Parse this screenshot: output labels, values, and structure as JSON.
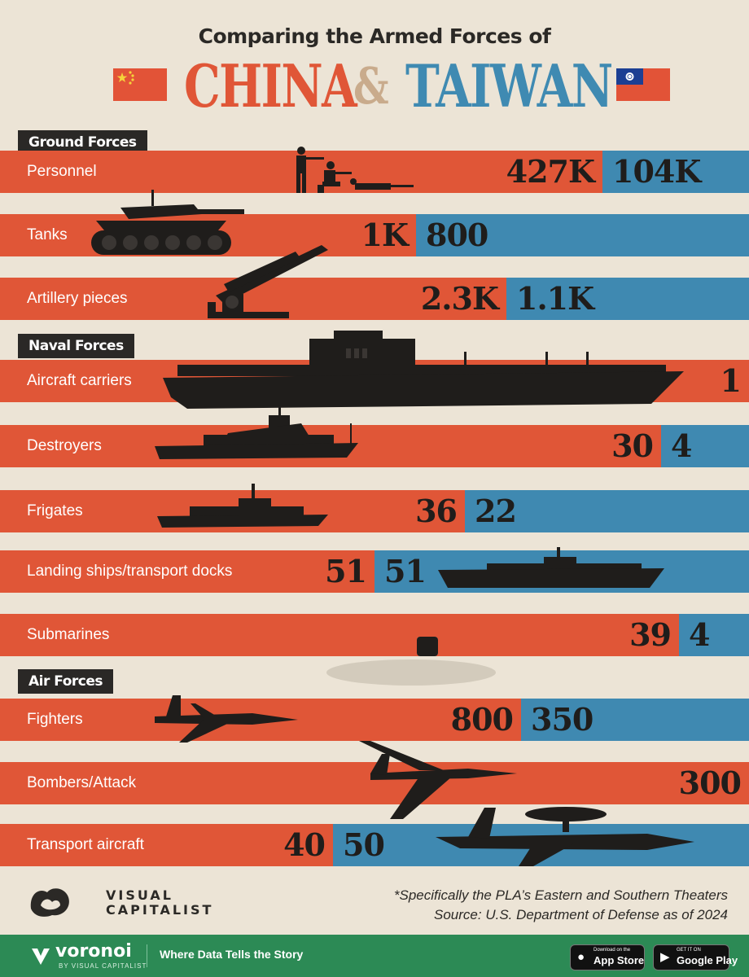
{
  "header": {
    "subtitle": "Comparing the Armed Forces of",
    "country_a": "CHINA",
    "ampersand": "&",
    "country_b": "TAIWAN"
  },
  "colors": {
    "china": "#e05637",
    "taiwan": "#3f89b1",
    "background": "#ece4d6",
    "label_bg": "#2a2826",
    "footer_bg": "#2c8a55"
  },
  "chart_data": {
    "type": "bar",
    "orientation": "horizontal-stacked-comparison",
    "title": "Comparing the Armed Forces of CHINA & TAIWAN",
    "legend": "flags",
    "sections": [
      {
        "name": "Ground Forces",
        "rows": [
          {
            "category": "Personnel",
            "china": 427000,
            "taiwan": 104000,
            "china_label": "427K",
            "taiwan_label": "104K",
            "icon": "soldiers-icon"
          },
          {
            "category": "Tanks",
            "china": 1000,
            "taiwan": 800,
            "china_label": "1K",
            "taiwan_label": "800",
            "icon": "tank-icon"
          },
          {
            "category": "Artillery pieces",
            "china": 2300,
            "taiwan": 1100,
            "china_label": "2.3K",
            "taiwan_label": "1.1K",
            "icon": "missile-launcher-icon"
          }
        ]
      },
      {
        "name": "Naval Forces",
        "rows": [
          {
            "category": "Aircraft carriers",
            "china": 1,
            "taiwan": 0,
            "china_label": "1",
            "taiwan_label": "",
            "icon": "aircraft-carrier-icon"
          },
          {
            "category": "Destroyers",
            "china": 30,
            "taiwan": 4,
            "china_label": "30",
            "taiwan_label": "4",
            "icon": "destroyer-icon"
          },
          {
            "category": "Frigates",
            "china": 36,
            "taiwan": 22,
            "china_label": "36",
            "taiwan_label": "22",
            "icon": "frigate-icon"
          },
          {
            "category": "Landing ships/transport docks",
            "china": 51,
            "taiwan": 51,
            "china_label": "51",
            "taiwan_label": "51",
            "icon": "landing-ship-icon"
          },
          {
            "category": "Submarines",
            "china": 39,
            "taiwan": 4,
            "china_label": "39",
            "taiwan_label": "4",
            "icon": "submarine-icon"
          }
        ]
      },
      {
        "name": "Air Forces",
        "rows": [
          {
            "category": "Fighters",
            "china": 800,
            "taiwan": 350,
            "china_label": "800",
            "taiwan_label": "350",
            "icon": "fighter-jet-icon"
          },
          {
            "category": "Bombers/Attack",
            "china": 300,
            "taiwan": 0,
            "china_label": "300",
            "taiwan_label": "",
            "icon": "bomber-icon"
          },
          {
            "category": "Transport aircraft",
            "china": 40,
            "taiwan": 50,
            "china_label": "40",
            "taiwan_label": "50",
            "icon": "transport-aircraft-icon"
          }
        ]
      }
    ]
  },
  "notes": {
    "footnote": "*Specifically the PLA’s Eastern and Southern Theaters",
    "source": "Source: U.S. Department of Defense as of 2024"
  },
  "branding": {
    "logo_line1": "VISUAL",
    "logo_line2": "CAPITALIST",
    "voronoi": "voronoi",
    "voronoi_sub": "BY VISUAL CAPITALIST",
    "tagline": "Where Data Tells the Story",
    "appstore_small": "Download on the",
    "appstore_large": "App Store",
    "googleplay_small": "GET IT ON",
    "googleplay_large": "Google Play"
  }
}
